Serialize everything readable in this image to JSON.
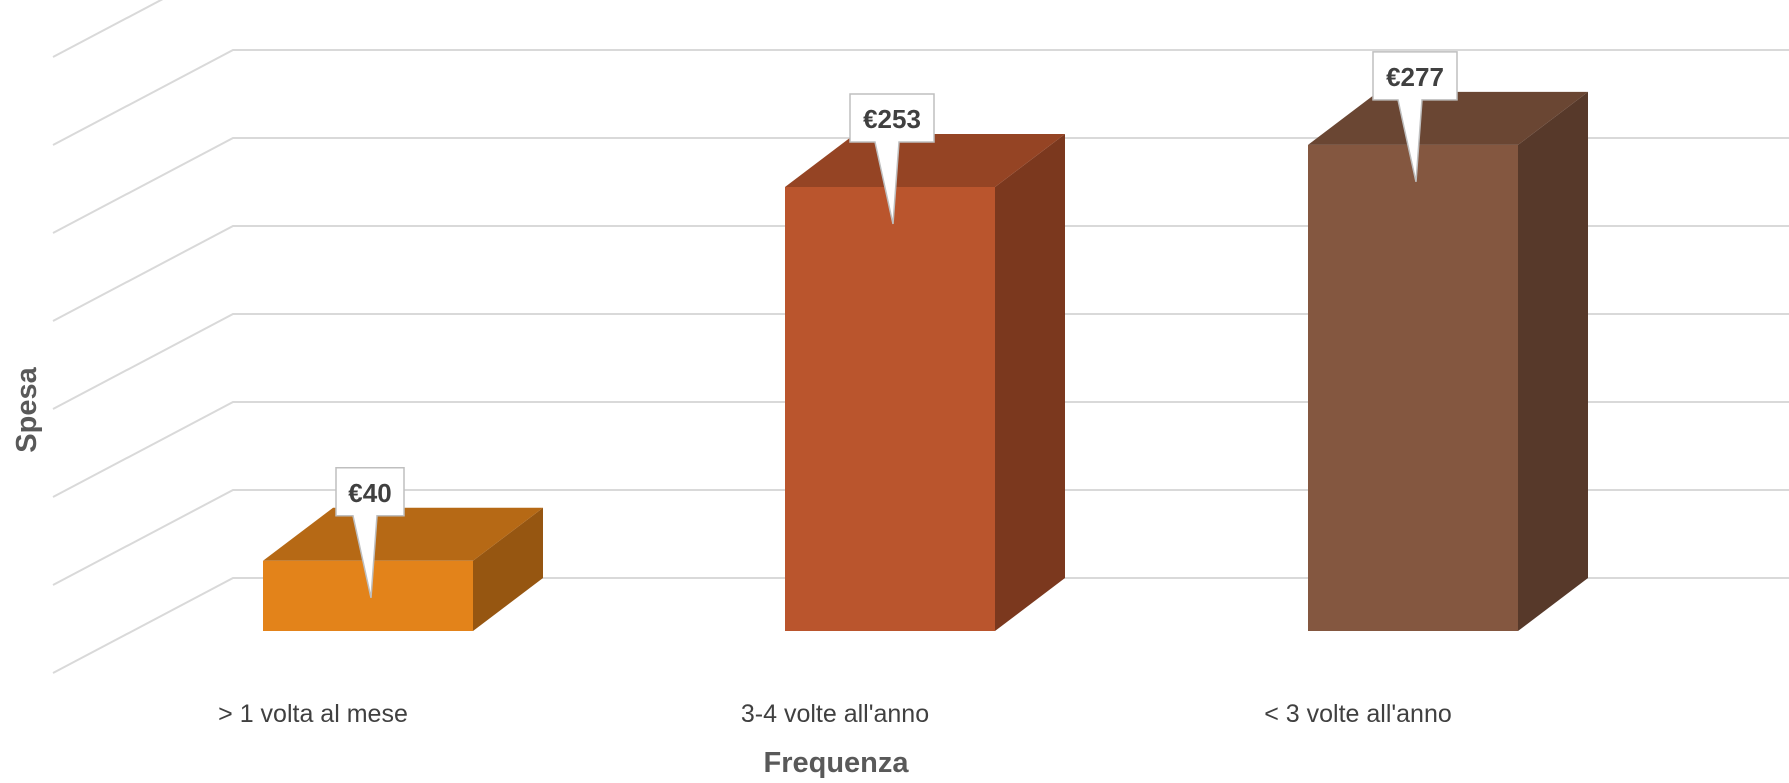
{
  "chart_data": {
    "type": "bar",
    "title": "",
    "xlabel": "Frequenza",
    "ylabel": "Spesa",
    "categories": [
      "> 1 volta al mese",
      "3-4 volte all'anno",
      "< 3 volte all'anno"
    ],
    "series": [
      {
        "values": [
          40,
          253,
          277
        ]
      }
    ],
    "data_labels": [
      "€40",
      "€253",
      "€277"
    ],
    "ylim": [
      0,
      350
    ],
    "grid": true,
    "legend": "none",
    "colors": {
      "bars": [
        "#E3831A",
        "#BA552D",
        "#845740"
      ],
      "grid": "#D9D9D9",
      "text": "#404040"
    }
  }
}
